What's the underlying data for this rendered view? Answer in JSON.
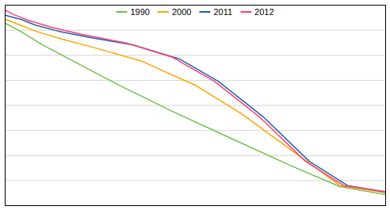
{
  "chart_data": {
    "type": "line",
    "series": [
      {
        "name": "1990",
        "color": "#70C050",
        "x": [
          0,
          0.04,
          0.1,
          0.18,
          0.3,
          0.44,
          0.6,
          0.75,
          0.88,
          1.0
        ],
        "values": [
          0.91,
          0.87,
          0.8,
          0.72,
          0.6,
          0.47,
          0.33,
          0.2,
          0.095,
          0.055
        ]
      },
      {
        "name": "2000",
        "color": "#FFA500",
        "x": [
          0,
          0.04,
          0.08,
          0.15,
          0.23,
          0.36,
          0.5,
          0.62,
          0.75,
          0.88,
          1.0
        ],
        "values": [
          0.93,
          0.9,
          0.87,
          0.83,
          0.79,
          0.72,
          0.6,
          0.46,
          0.28,
          0.1,
          0.065
        ]
      },
      {
        "name": "2011",
        "color": "#2060B0",
        "x": [
          0,
          0.04,
          0.08,
          0.14,
          0.22,
          0.34,
          0.46,
          0.56,
          0.68,
          0.8,
          0.9,
          1.0
        ],
        "values": [
          0.95,
          0.93,
          0.9,
          0.87,
          0.84,
          0.8,
          0.73,
          0.62,
          0.44,
          0.22,
          0.1,
          0.068
        ]
      },
      {
        "name": "2012",
        "color": "#FF4070",
        "x": [
          0,
          0.02,
          0.06,
          0.12,
          0.2,
          0.32,
          0.44,
          0.55,
          0.67,
          0.79,
          0.89,
          1.0
        ],
        "values": [
          0.975,
          0.955,
          0.925,
          0.89,
          0.855,
          0.81,
          0.74,
          0.62,
          0.44,
          0.22,
          0.1,
          0.07
        ]
      }
    ],
    "xlim": [
      0,
      1
    ],
    "ylim": [
      0,
      1.0
    ],
    "yticks": [
      0.125,
      0.25,
      0.375,
      0.5,
      0.625,
      0.75,
      0.875
    ],
    "grid": true,
    "tick_labels": false,
    "legend": "upper center"
  }
}
